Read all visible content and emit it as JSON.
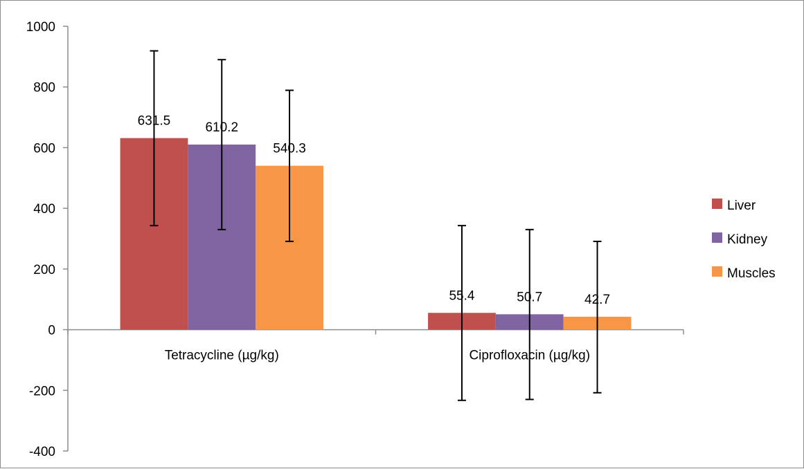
{
  "chart_data": {
    "type": "bar",
    "title": "",
    "xlabel": "",
    "ylabel": "",
    "ylim": [
      -400,
      1000
    ],
    "yticks": [
      -400,
      -200,
      0,
      200,
      400,
      600,
      800,
      1000
    ],
    "ytick_labels": [
      "-400",
      "-200",
      "0",
      "200",
      "400",
      "600",
      "800",
      "1000"
    ],
    "categories": [
      "Tetracycline (µg/kg)",
      "Ciprofloxacin (µg/kg)"
    ],
    "grid": false,
    "legend_position": "right",
    "series": [
      {
        "name": "Liver",
        "color": "#C0504D",
        "values": [
          631.5,
          55.4
        ],
        "value_labels": [
          "631.5",
          "55.4"
        ],
        "error_low": [
          343,
          -233
        ],
        "error_high": [
          919,
          343
        ]
      },
      {
        "name": "Kidney",
        "color": "#8064A2",
        "values": [
          610.2,
          50.7
        ],
        "value_labels": [
          "610.2",
          "50.7"
        ],
        "error_low": [
          330,
          -230
        ],
        "error_high": [
          890,
          330
        ]
      },
      {
        "name": "Muscles",
        "color": "#F79646",
        "values": [
          540.3,
          42.7
        ],
        "value_labels": [
          "540.3",
          "42.7"
        ],
        "error_low": [
          291,
          -208
        ],
        "error_high": [
          789,
          291
        ]
      }
    ]
  }
}
